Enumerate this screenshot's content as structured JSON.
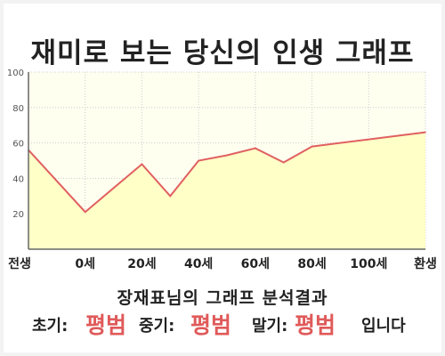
{
  "title": "재미로 보는 당신의 인생 그래프",
  "chart_data": {
    "type": "area",
    "x_labels": [
      "전생",
      "0세",
      "20세",
      "40세",
      "60세",
      "80세",
      "100세",
      "환생"
    ],
    "points": [
      {
        "x": "전생",
        "y": 56
      },
      {
        "x": "0세",
        "y": 21
      },
      {
        "x": "20세",
        "y": 48
      },
      {
        "x": "30세",
        "y": 30
      },
      {
        "x": "40세",
        "y": 50
      },
      {
        "x": "50세",
        "y": 53
      },
      {
        "x": "60세",
        "y": 57
      },
      {
        "x": "70세",
        "y": 49
      },
      {
        "x": "80세",
        "y": 58
      },
      {
        "x": "100세",
        "y": 62
      },
      {
        "x": "환생",
        "y": 66
      }
    ],
    "yticks": [
      20,
      40,
      60,
      80,
      100
    ],
    "ylim": [
      0,
      100
    ],
    "grid": true,
    "colors": {
      "line": "#e06060",
      "fill": "#ffffc8",
      "plot_bg": "#fffff0",
      "grid": "#cccccc"
    }
  },
  "subtitle": "장재표님의 그래프 분석결과",
  "result": {
    "early_label": "초기:",
    "early_value": "평범",
    "middle_label": "중기:",
    "middle_value": "평범",
    "late_label": "말기:",
    "late_value": "평범",
    "suffix": "입니다"
  }
}
